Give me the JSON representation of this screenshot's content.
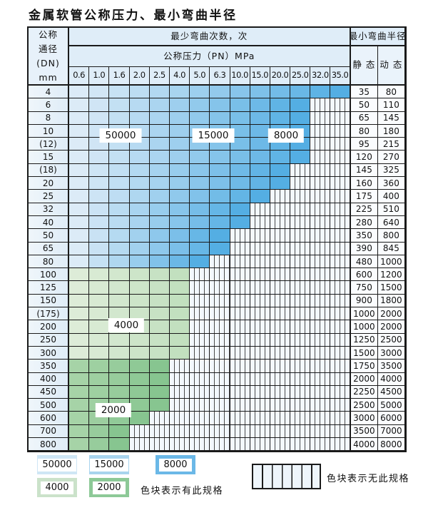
{
  "title": "金属软管公称压力、最小弯曲半径",
  "table": {
    "dn_header": [
      "公称",
      "通径",
      "(DN)",
      "mm"
    ],
    "bend_count_header": "最少弯曲次数，次",
    "radius_header": "最小弯曲半径",
    "pn_header": "公称压力（PN）MPa",
    "pressure_columns": [
      "0.6",
      "1.0",
      "1.6",
      "2.0",
      "2.5",
      "4.0",
      "5.0",
      "6.3",
      "10.0",
      "15.0",
      "20.0",
      "25.0",
      "32.0",
      "35.0"
    ],
    "static_header": "静 态",
    "dynamic_header": "动 态",
    "zone_labels": [
      "50000",
      "15000",
      "8000",
      "4000",
      "2000"
    ],
    "rows": [
      {
        "dn": "4",
        "colored": 14,
        "palette": "blue",
        "static": "35",
        "dynamic": "80"
      },
      {
        "dn": "6",
        "colored": 12,
        "palette": "blue",
        "static": "50",
        "dynamic": "110"
      },
      {
        "dn": "8",
        "colored": 12,
        "palette": "blue",
        "static": "65",
        "dynamic": "145"
      },
      {
        "dn": "10",
        "colored": 12,
        "palette": "blue",
        "static": "80",
        "dynamic": "180"
      },
      {
        "dn": "(12)",
        "colored": 12,
        "palette": "blue",
        "static": "95",
        "dynamic": "215"
      },
      {
        "dn": "15",
        "colored": 12,
        "palette": "blue",
        "static": "120",
        "dynamic": "270"
      },
      {
        "dn": "(18)",
        "colored": 11,
        "palette": "blue",
        "static": "145",
        "dynamic": "325"
      },
      {
        "dn": "20",
        "colored": 11,
        "palette": "blue",
        "static": "160",
        "dynamic": "360"
      },
      {
        "dn": "25",
        "colored": 10,
        "palette": "blue",
        "static": "175",
        "dynamic": "400"
      },
      {
        "dn": "32",
        "colored": 9,
        "palette": "blue",
        "static": "225",
        "dynamic": "510"
      },
      {
        "dn": "40",
        "colored": 9,
        "palette": "blue",
        "static": "280",
        "dynamic": "640"
      },
      {
        "dn": "50",
        "colored": 8,
        "palette": "blue",
        "static": "350",
        "dynamic": "800"
      },
      {
        "dn": "65",
        "colored": 8,
        "palette": "blue",
        "static": "390",
        "dynamic": "845"
      },
      {
        "dn": "80",
        "colored": 7,
        "palette": "blue",
        "static": "480",
        "dynamic": "1000"
      },
      {
        "dn": "100",
        "colored": 6,
        "palette": "green_light",
        "static": "600",
        "dynamic": "1200"
      },
      {
        "dn": "125",
        "colored": 6,
        "palette": "green_light",
        "static": "750",
        "dynamic": "1500"
      },
      {
        "dn": "150",
        "colored": 6,
        "palette": "green_light",
        "static": "900",
        "dynamic": "1800"
      },
      {
        "dn": "(175)",
        "colored": 6,
        "palette": "green_light",
        "static": "1000",
        "dynamic": "2000"
      },
      {
        "dn": "200",
        "colored": 6,
        "palette": "green_light",
        "static": "1000",
        "dynamic": "2000"
      },
      {
        "dn": "250",
        "colored": 6,
        "palette": "green_light",
        "static": "1250",
        "dynamic": "2500"
      },
      {
        "dn": "300",
        "colored": 6,
        "palette": "green_light",
        "static": "1500",
        "dynamic": "3000"
      },
      {
        "dn": "350",
        "colored": 5,
        "palette": "green_dark",
        "static": "1750",
        "dynamic": "3500"
      },
      {
        "dn": "400",
        "colored": 5,
        "palette": "green_dark",
        "static": "2000",
        "dynamic": "4000"
      },
      {
        "dn": "450",
        "colored": 5,
        "palette": "green_dark",
        "static": "2250",
        "dynamic": "4500"
      },
      {
        "dn": "500",
        "colored": 5,
        "palette": "green_dark",
        "static": "2500",
        "dynamic": "5000"
      },
      {
        "dn": "600",
        "colored": 4,
        "palette": "green_dark",
        "static": "3000",
        "dynamic": "6000"
      },
      {
        "dn": "700",
        "colored": 3,
        "palette": "green_dark",
        "static": "3500",
        "dynamic": "7000"
      },
      {
        "dn": "800",
        "colored": 3,
        "palette": "green_dark",
        "static": "4000",
        "dynamic": "8000"
      }
    ]
  },
  "palettes": {
    "blue": {
      "light": "#dcebf7",
      "dark": "#54aee3"
    },
    "green_light": {
      "light": "#ddecd8",
      "dark": "#c2e0bf"
    },
    "green_dark": {
      "light": "#a6d3a7",
      "dark": "#87c590"
    }
  },
  "legend": {
    "has_spec": [
      {
        "label": "50000",
        "color": "#cfe6f5"
      },
      {
        "label": "15000",
        "color": "#a8d4ee"
      },
      {
        "label": "8000",
        "color": "#6bb8e7"
      },
      {
        "label": "4000",
        "color": "#cbe2ca"
      },
      {
        "label": "2000",
        "color": "#8dc997"
      }
    ],
    "has_spec_note": "色块表示有此规格",
    "no_spec_note": "色块表示无此规格"
  }
}
